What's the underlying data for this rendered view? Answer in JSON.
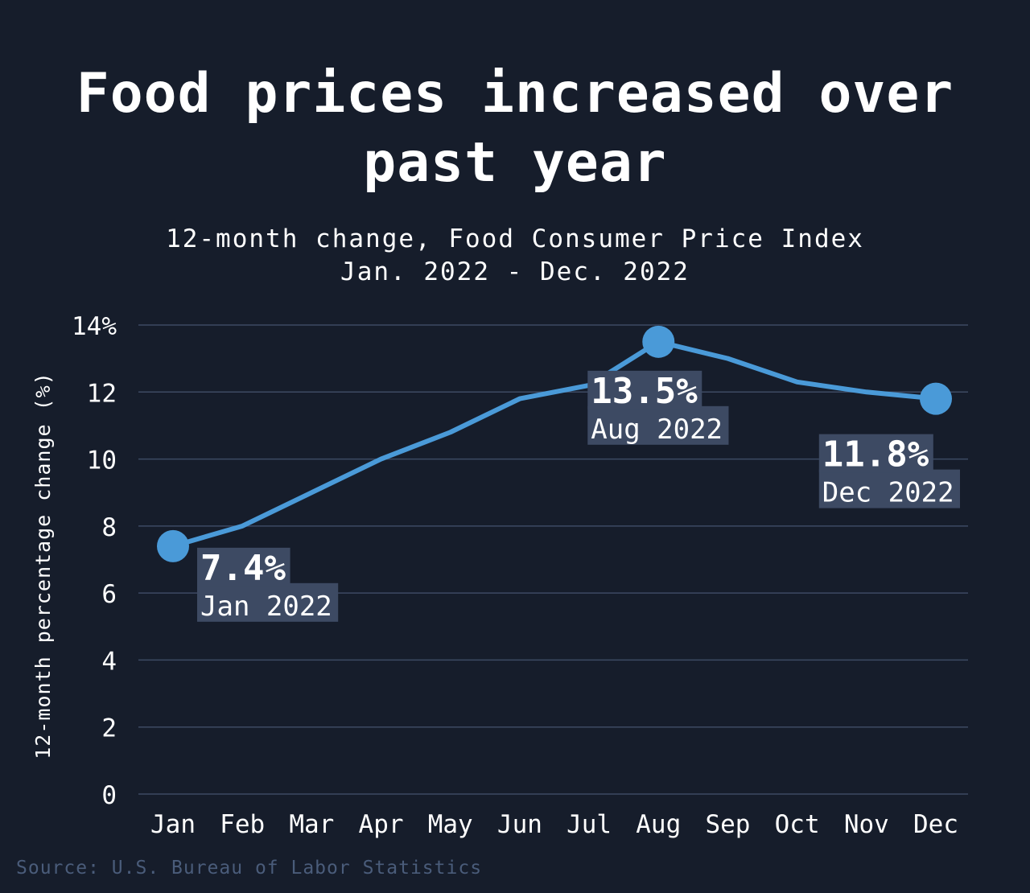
{
  "chart_data": {
    "type": "line",
    "title": "Food prices increased over past year",
    "subtitle": [
      "12-month change, Food Consumer Price Index",
      "Jan. 2022 - Dec. 2022"
    ],
    "ylabel": "12-month percentage change (%)",
    "ylim": [
      0,
      14
    ],
    "yticks": [
      "0",
      "2",
      "4",
      "6",
      "8",
      "10",
      "12",
      "14%"
    ],
    "categories": [
      "Jan",
      "Feb",
      "Mar",
      "Apr",
      "May",
      "Jun",
      "Jul",
      "Aug",
      "Sep",
      "Oct",
      "Nov",
      "Dec"
    ],
    "series": [
      {
        "values": [
          7.4,
          8.0,
          9.0,
          10.0,
          10.8,
          11.8,
          12.2,
          13.5,
          13.0,
          12.3,
          12.0,
          11.8
        ],
        "color": "#4a9ad8"
      }
    ],
    "annotations": [
      {
        "index": 0,
        "value": "7.4%",
        "label": "Jan 2022"
      },
      {
        "index": 7,
        "value": "13.5%",
        "label": "Aug 2022"
      },
      {
        "index": 11,
        "value": "11.8%",
        "label": "Dec 2022"
      }
    ],
    "grid": true,
    "source": "Source: U.S. Bureau of Labor Statistics"
  },
  "colors": {
    "background": "#161d2b",
    "line": "#4a9ad8",
    "grid": "#3d4a63",
    "label_box": "#3d4a63",
    "source": "#4a5c7a"
  }
}
